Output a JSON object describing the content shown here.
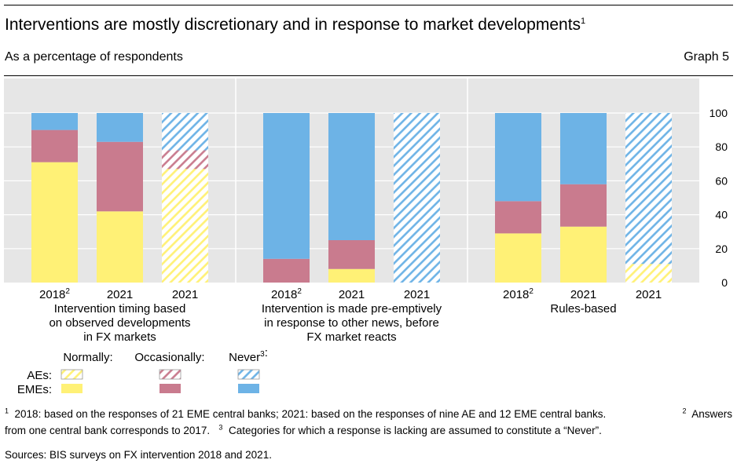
{
  "header": {
    "title": "Interventions are mostly discretionary and in response to market developments",
    "title_note": "1",
    "subtitle": "As a percentage of respondents",
    "graph_label": "Graph 5"
  },
  "chart_data": {
    "type": "bar",
    "stacked": true,
    "ylim": [
      0,
      100
    ],
    "yticks": [
      0,
      20,
      40,
      60,
      80,
      100
    ],
    "y_axis_side": "right",
    "grid": true,
    "colors": {
      "Normally": "#fff176",
      "Occasionally": "#c97b8e",
      "Never": "#6db3e6",
      "hatch_bg": "#ffffff",
      "panel_bg": "#e6e6e6"
    },
    "stack_order": [
      "Normally",
      "Occasionally",
      "Never"
    ],
    "panels": [
      {
        "label": "Intervention timing based on observed developments in FX markets",
        "label_lines": [
          "Intervention timing based",
          "on observed developments",
          "in FX markets"
        ],
        "bars": [
          {
            "category": "2018",
            "note": "2",
            "group": "EMEs",
            "Normally": 71,
            "Occasionally": 19,
            "Never": 10
          },
          {
            "category": "2021",
            "note": "",
            "group": "EMEs",
            "Normally": 42,
            "Occasionally": 41,
            "Never": 17
          },
          {
            "category": "2021",
            "note": "",
            "group": "AEs",
            "Normally": 67,
            "Occasionally": 11,
            "Never": 22
          }
        ]
      },
      {
        "label": "Intervention is made pre-emptively in response to other news, before FX market reacts",
        "label_lines": [
          "Intervention is made pre-emptively",
          "in response to other news, before",
          "FX market reacts"
        ],
        "bars": [
          {
            "category": "2018",
            "note": "2",
            "group": "EMEs",
            "Normally": 0,
            "Occasionally": 14,
            "Never": 86
          },
          {
            "category": "2021",
            "note": "",
            "group": "EMEs",
            "Normally": 8,
            "Occasionally": 17,
            "Never": 75
          },
          {
            "category": "2021",
            "note": "",
            "group": "AEs",
            "Normally": 0,
            "Occasionally": 0,
            "Never": 100
          }
        ]
      },
      {
        "label": "Rules-based",
        "label_lines": [
          "Rules-based"
        ],
        "bars": [
          {
            "category": "2018",
            "note": "2",
            "group": "EMEs",
            "Normally": 29,
            "Occasionally": 19,
            "Never": 52
          },
          {
            "category": "2021",
            "note": "",
            "group": "EMEs",
            "Normally": 33,
            "Occasionally": 25,
            "Never": 42
          },
          {
            "category": "2021",
            "note": "",
            "group": "AEs",
            "Normally": 11,
            "Occasionally": 0,
            "Never": 89
          }
        ]
      }
    ],
    "legend": {
      "placement": "bottom-left",
      "columns": [
        {
          "label": "Normally:",
          "note": "",
          "key": "Normally"
        },
        {
          "label": "Occasionally:",
          "note": "",
          "key": "Occasionally"
        },
        {
          "label": "Never",
          "note": "3",
          "suffix": ":",
          "key": "Never"
        }
      ],
      "rows": [
        {
          "label": "AEs:",
          "style": "hatched"
        },
        {
          "label": "EMEs:",
          "style": "solid"
        }
      ]
    }
  },
  "footnotes": {
    "line1_notes": [
      {
        "mark": "1",
        "text": "2018: based on the responses of 21 EME central banks; 2021: based on the responses of nine AE and 12 EME central banks."
      },
      {
        "mark": "2",
        "text": "Answers"
      }
    ],
    "line2_notes": [
      {
        "mark": "",
        "text": "from one central bank corresponds to 2017."
      },
      {
        "mark": "3",
        "text": "Categories for which a response is lacking are assumed to constitute a “Never”."
      }
    ],
    "sources": "Sources: BIS surveys on FX intervention 2018 and 2021."
  }
}
